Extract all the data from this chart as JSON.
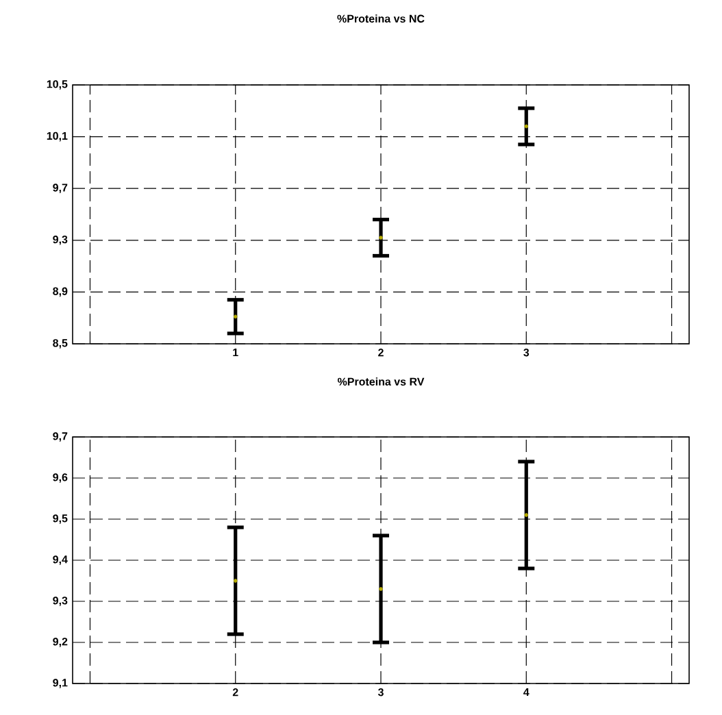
{
  "chart_data": [
    {
      "type": "scatter",
      "title": "%Proteina vs NC",
      "marker": "circle",
      "grid": true,
      "x": [
        1,
        2,
        3
      ],
      "values": [
        8.71,
        9.32,
        10.18
      ],
      "errors": [
        0.13,
        0.14,
        0.14
      ],
      "color": "#b4aa00",
      "xlim": [
        -0.12,
        4.12
      ],
      "xticks": [
        {
          "value": 0,
          "label": null
        },
        1,
        2,
        3,
        {
          "value": 4,
          "label": null
        }
      ],
      "ylim": [
        8.5,
        10.5
      ],
      "yticks": [
        {
          "value": 8.5,
          "label": "8,5"
        },
        {
          "value": 8.9,
          "label": "8,9"
        },
        {
          "value": 9.3,
          "label": "9,3"
        },
        {
          "value": 9.7,
          "label": "9,7"
        },
        {
          "value": 10.1,
          "label": "10,1"
        },
        {
          "value": 10.5,
          "label": "10,5"
        }
      ]
    },
    {
      "type": "scatter",
      "title": "%Proteina vs RV",
      "marker": "circle",
      "grid": true,
      "x": [
        2,
        3,
        4
      ],
      "values": [
        9.35,
        9.33,
        9.51
      ],
      "errors": [
        0.13,
        0.13,
        0.13
      ],
      "color": "#b4aa00",
      "xlim": [
        0.88,
        5.12
      ],
      "xticks": [
        {
          "value": 1,
          "label": null
        },
        2,
        3,
        4,
        {
          "value": 5,
          "label": null
        }
      ],
      "ylim": [
        9.1,
        9.7
      ],
      "yticks": [
        {
          "value": 9.1,
          "label": "9,1"
        },
        {
          "value": 9.2,
          "label": "9,2"
        },
        {
          "value": 9.3,
          "label": "9,3"
        },
        {
          "value": 9.4,
          "label": "9,4"
        },
        {
          "value": 9.5,
          "label": "9,5"
        },
        {
          "value": 9.6,
          "label": "9,6"
        },
        {
          "value": 9.7,
          "label": "9,7"
        }
      ]
    }
  ]
}
